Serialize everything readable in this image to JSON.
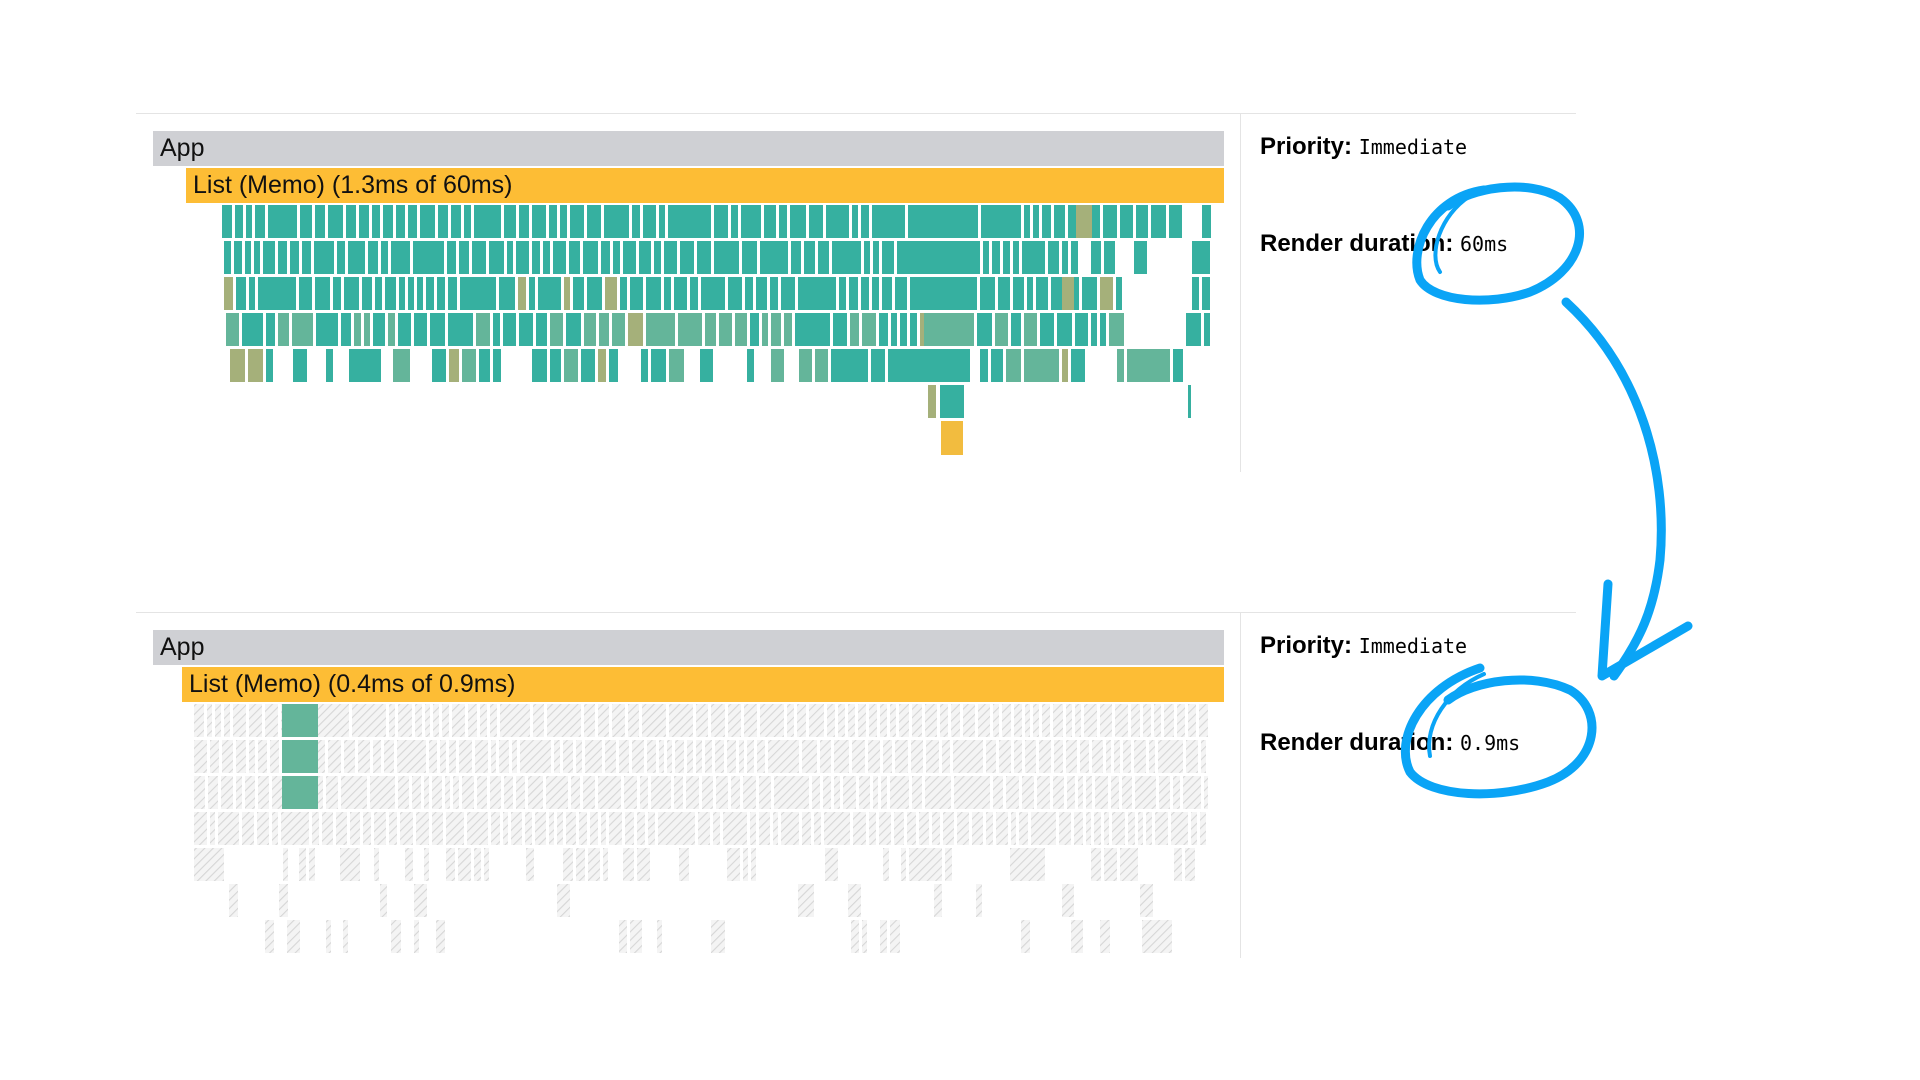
{
  "colors": {
    "teal": "#36b0a0",
    "teal_muted": "#64b59a",
    "olive": "#a5b07a",
    "yellow": "#f2bc3f",
    "orange_bar": "#fdbd35",
    "gray_bar": "#cfd0d4",
    "annotation_blue": "#0aa4f6"
  },
  "profiles": [
    {
      "root_label": "App",
      "component_label": "List (Memo) (1.3ms of 60ms)",
      "priority_label": "Priority",
      "priority_value": "Immediate",
      "duration_label": "Render duration",
      "duration_value": "60ms"
    },
    {
      "root_label": "App",
      "component_label": "List (Memo) (0.4ms of 0.9ms)",
      "priority_label": "Priority",
      "priority_value": "Immediate",
      "duration_label": "Render duration",
      "duration_value": "0.9ms"
    }
  ]
}
